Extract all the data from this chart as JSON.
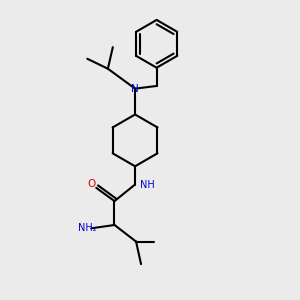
{
  "background_color": "#ebebeb",
  "bond_color": "#000000",
  "N_color": "#0000cc",
  "O_color": "#dd0000",
  "line_width": 1.5,
  "font_size": 7.0,
  "fig_width": 3.0,
  "fig_height": 3.0,
  "dpi": 100,
  "xlim": [
    1.5,
    8.5
  ],
  "ylim": [
    0.5,
    9.5
  ]
}
